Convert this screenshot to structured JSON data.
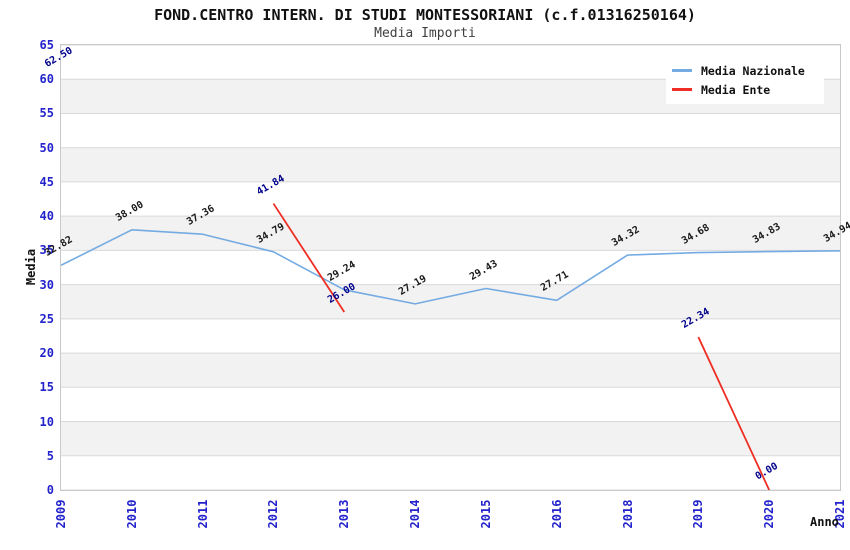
{
  "title": "FOND.CENTRO INTERN. DI STUDI MONTESSORIANI (c.f.01316250164)",
  "subtitle": "Media Importi",
  "colors": {
    "axis_tick": "#2323cc",
    "nazionale_line": "#74abe2",
    "ente_line": "#ee2e24",
    "nazionale_label": "#1a1a1a",
    "ente_label": "#00008b",
    "grid_band": "#f2f2f2",
    "gridline": "#d9d9d9",
    "plot_border": "#c9c9c9"
  },
  "chart_data": {
    "type": "line",
    "title": "FOND.CENTRO INTERN. DI STUDI MONTESSORIANI (c.f.01316250164)",
    "subtitle": "Media Importi",
    "xlabel": "Anno",
    "ylabel": "Media",
    "ylim": [
      0,
      65
    ],
    "ytick_step": 5,
    "grid": true,
    "legend_position": "top-right",
    "categories": [
      "2009",
      "2010",
      "2011",
      "2012",
      "2013",
      "2014",
      "2015",
      "2016",
      "2018",
      "2019",
      "2020",
      "2021"
    ],
    "series": [
      {
        "name": "Media Nazionale",
        "color": "#74abe2",
        "label_color": "#1a1a1a",
        "values": [
          32.82,
          38.0,
          37.36,
          34.79,
          29.24,
          27.19,
          29.43,
          27.71,
          34.32,
          34.68,
          34.83,
          34.94
        ]
      },
      {
        "name": "Media Ente",
        "color": "#ee2e24",
        "label_color": "#00008b",
        "values": [
          62.5,
          null,
          null,
          41.84,
          26.0,
          null,
          null,
          null,
          null,
          22.34,
          0.0,
          null
        ]
      }
    ]
  }
}
